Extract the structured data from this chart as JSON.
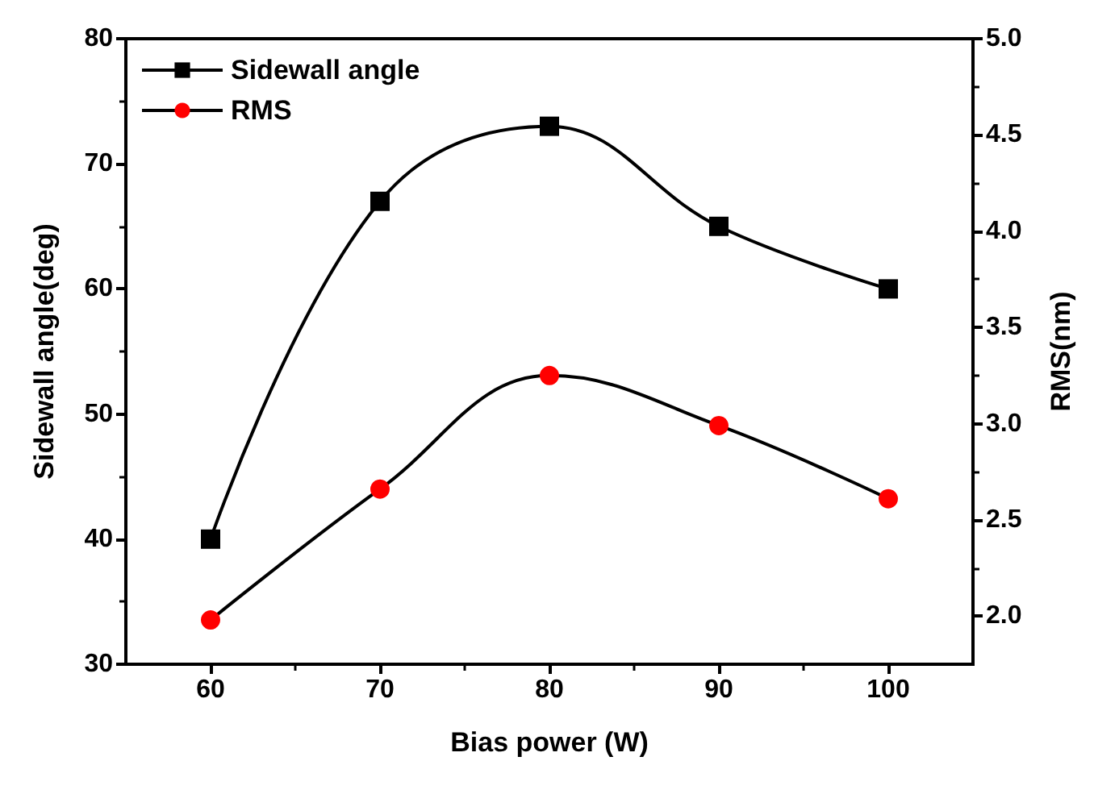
{
  "chart_data": {
    "type": "line",
    "xlabel": "Bias power (W)",
    "ylabel": "Sidewall angle(deg)",
    "y2label": "RMS(nm)",
    "x": [
      60,
      70,
      80,
      90,
      100
    ],
    "series": [
      {
        "name": "Sidewall angle",
        "color": "#000000",
        "marker": "square",
        "values": [
          40,
          67,
          73,
          65,
          60
        ]
      },
      {
        "name": "RMS",
        "color": "#ff0000",
        "marker": "circle",
        "axis": "y2",
        "values": [
          1.98,
          2.66,
          3.25,
          2.99,
          2.61
        ]
      }
    ],
    "xlim": [
      55,
      105
    ],
    "xticks": [
      60,
      70,
      80,
      90,
      100
    ],
    "ylim": [
      30,
      80
    ],
    "yticks": [
      30,
      40,
      50,
      60,
      70,
      80
    ],
    "y2lim": [
      1.75,
      5.0
    ],
    "y2ticks": [
      {
        "value": 2,
        "label": "2.0"
      },
      2.5,
      {
        "value": 3,
        "label": "3.0"
      },
      3.5,
      {
        "value": 4,
        "label": "4.0"
      },
      4.5,
      {
        "value": 5,
        "label": "5.0"
      }
    ],
    "grid": false,
    "legend": "top left",
    "line_style": "solid"
  }
}
